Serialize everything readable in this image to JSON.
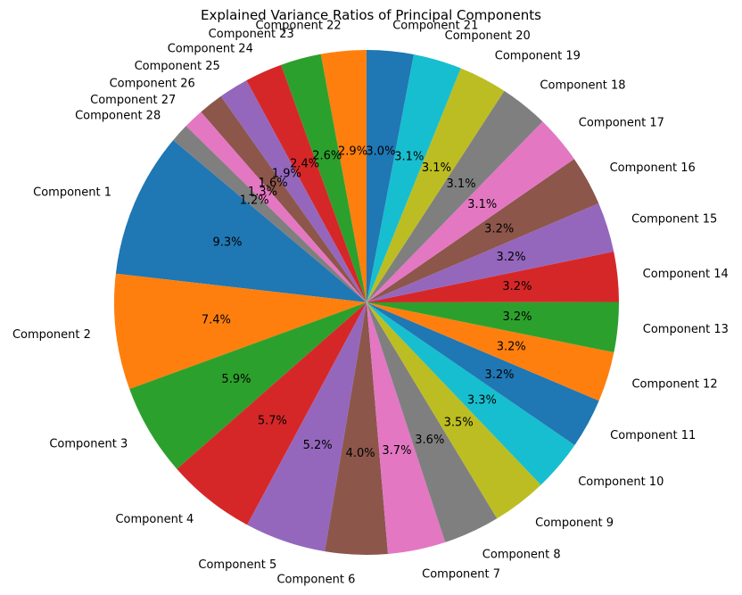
{
  "chart_data": {
    "type": "pie",
    "title": "Explained Variance Ratios of Principal Components",
    "start_angle_deg": 140,
    "direction": "counterclockwise",
    "slices": [
      {
        "label": "Component 1",
        "value": 9.3,
        "pct_label": "9.3%",
        "color": "#1f77b4"
      },
      {
        "label": "Component 2",
        "value": 7.4,
        "pct_label": "7.4%",
        "color": "#ff7f0e"
      },
      {
        "label": "Component 3",
        "value": 5.9,
        "pct_label": "5.9%",
        "color": "#2ca02c"
      },
      {
        "label": "Component 4",
        "value": 5.7,
        "pct_label": "5.7%",
        "color": "#d62728"
      },
      {
        "label": "Component 5",
        "value": 5.2,
        "pct_label": "5.2%",
        "color": "#9467bd"
      },
      {
        "label": "Component 6",
        "value": 4.0,
        "pct_label": "4.0%",
        "color": "#8c564b"
      },
      {
        "label": "Component 7",
        "value": 3.7,
        "pct_label": "3.7%",
        "color": "#e377c2"
      },
      {
        "label": "Component 8",
        "value": 3.6,
        "pct_label": "3.6%",
        "color": "#7f7f7f"
      },
      {
        "label": "Component 9",
        "value": 3.5,
        "pct_label": "3.5%",
        "color": "#bcbd22"
      },
      {
        "label": "Component 10",
        "value": 3.3,
        "pct_label": "3.3%",
        "color": "#17becf"
      },
      {
        "label": "Component 11",
        "value": 3.2,
        "pct_label": "3.2%",
        "color": "#1f77b4"
      },
      {
        "label": "Component 12",
        "value": 3.2,
        "pct_label": "3.2%",
        "color": "#ff7f0e"
      },
      {
        "label": "Component 13",
        "value": 3.2,
        "pct_label": "3.2%",
        "color": "#2ca02c"
      },
      {
        "label": "Component 14",
        "value": 3.2,
        "pct_label": "3.2%",
        "color": "#d62728"
      },
      {
        "label": "Component 15",
        "value": 3.2,
        "pct_label": "3.2%",
        "color": "#9467bd"
      },
      {
        "label": "Component 16",
        "value": 3.2,
        "pct_label": "3.2%",
        "color": "#8c564b"
      },
      {
        "label": "Component 17",
        "value": 3.1,
        "pct_label": "3.1%",
        "color": "#e377c2"
      },
      {
        "label": "Component 18",
        "value": 3.1,
        "pct_label": "3.1%",
        "color": "#7f7f7f"
      },
      {
        "label": "Component 19",
        "value": 3.1,
        "pct_label": "3.1%",
        "color": "#bcbd22"
      },
      {
        "label": "Component 20",
        "value": 3.1,
        "pct_label": "3.1%",
        "color": "#17becf"
      },
      {
        "label": "Component 21",
        "value": 3.0,
        "pct_label": "3.0%",
        "color": "#1f77b4"
      },
      {
        "label": "Component 22",
        "value": 2.9,
        "pct_label": "2.9%",
        "color": "#ff7f0e"
      },
      {
        "label": "Component 23",
        "value": 2.6,
        "pct_label": "2.6%",
        "color": "#2ca02c"
      },
      {
        "label": "Component 24",
        "value": 2.4,
        "pct_label": "2.4%",
        "color": "#d62728"
      },
      {
        "label": "Component 25",
        "value": 1.9,
        "pct_label": "1.9%",
        "color": "#9467bd"
      },
      {
        "label": "Component 26",
        "value": 1.6,
        "pct_label": "1.6%",
        "color": "#8c564b"
      },
      {
        "label": "Component 27",
        "value": 1.3,
        "pct_label": "1.3%",
        "color": "#e377c2"
      },
      {
        "label": "Component 28",
        "value": 1.2,
        "pct_label": "1.2%",
        "color": "#7f7f7f"
      }
    ]
  }
}
